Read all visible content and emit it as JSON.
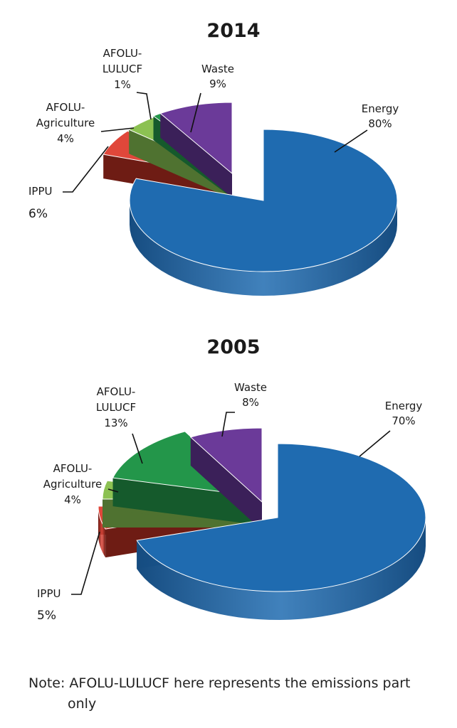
{
  "chart_data": [
    {
      "type": "pie",
      "style": "3d-exploded",
      "title": "2014",
      "categories": [
        "Energy",
        "IPPU",
        "AFOLU-Agriculture",
        "AFOLU-LULUCF",
        "Waste"
      ],
      "values": [
        80,
        6,
        4,
        1,
        9
      ],
      "labels": {
        "energy": [
          "Energy",
          "80%"
        ],
        "ippu": [
          "IPPU",
          "6%"
        ],
        "agri": [
          "AFOLU-",
          "Agriculture",
          "4%"
        ],
        "lulucf": [
          "AFOLU-",
          "LULUCF",
          "1%"
        ],
        "waste": [
          "Waste",
          "9%"
        ]
      }
    },
    {
      "type": "pie",
      "style": "3d-exploded",
      "title": "2005",
      "categories": [
        "Energy",
        "IPPU",
        "AFOLU-Agriculture",
        "AFOLU-LULUCF",
        "Waste"
      ],
      "values": [
        70,
        5,
        4,
        13,
        8
      ],
      "labels": {
        "energy": [
          "Energy",
          "70%"
        ],
        "ippu": [
          "IPPU",
          "5%"
        ],
        "agri": [
          "AFOLU-",
          "Agriculture",
          "4%"
        ],
        "lulucf": [
          "AFOLU-",
          "LULUCF",
          "13%"
        ],
        "waste": [
          "Waste",
          "8%"
        ]
      }
    }
  ],
  "colors": {
    "Energy": {
      "top": "#1f6bb0",
      "side": "#164c80"
    },
    "IPPU": {
      "top": "#e0473a",
      "side": "#6e1c14"
    },
    "AFOLU-Agriculture": {
      "top": "#8cc152",
      "side": "#4f7230"
    },
    "AFOLU-LULUCF": {
      "top": "#23964a",
      "side": "#155a2c"
    },
    "Waste": {
      "top": "#6b3a99",
      "side": "#3b2059"
    }
  },
  "note": {
    "line1": "Note: AFOLU-LULUCF here represents the emissions part",
    "line2": "only"
  }
}
